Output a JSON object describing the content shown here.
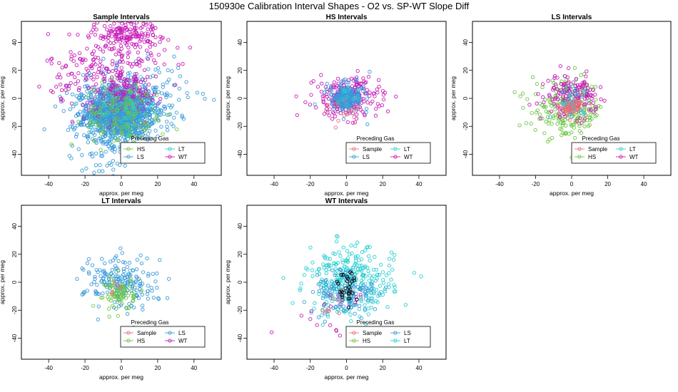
{
  "main_title": "150930e   Calibration Interval Shapes - O2 vs. SP-WT Slope Diff",
  "colors": {
    "Sample": "#e8707a",
    "HS": "#6cc644",
    "LS": "#3a9ad9",
    "LT": "#2ccfd0",
    "WT": "#c71cb8",
    "black": "#000000"
  },
  "legend_title": "Preceding Gas",
  "chart_data": [
    {
      "type": "scatter",
      "title": "Sample Intervals",
      "xlabel": "approx. per meg",
      "ylabel": "approx. per meg",
      "xlim": [
        -55,
        55
      ],
      "ylim": [
        -55,
        55
      ],
      "xticks": [
        -40,
        -20,
        0,
        20,
        40
      ],
      "yticks": [
        -40,
        -20,
        0,
        20,
        40
      ],
      "legend": [
        "HS",
        "LT",
        "LS",
        "WT"
      ],
      "legend_position": "bottom-right",
      "series": [
        {
          "name": "LS",
          "clusters": [
            [
              0,
              -10,
              9,
              9,
              1200
            ],
            [
              -5,
              -20,
              12,
              18,
              260
            ],
            [
              5,
              0,
              16,
              12,
              220
            ]
          ]
        },
        {
          "name": "WT",
          "clusters": [
            [
              3,
              47,
              9,
              6,
              170
            ],
            [
              -8,
              20,
              16,
              14,
              200
            ],
            [
              2,
              5,
              10,
              8,
              90
            ]
          ]
        },
        {
          "name": "HS",
          "clusters": [
            [
              2,
              -12,
              11,
              12,
              150
            ]
          ]
        },
        {
          "name": "LT",
          "clusters": [
            [
              0,
              -8,
              8,
              8,
              40
            ]
          ]
        }
      ]
    },
    {
      "type": "scatter",
      "title": "HS Intervals",
      "xlabel": "approx. per meg",
      "ylabel": "approx. per meg",
      "xlim": [
        -55,
        55
      ],
      "ylim": [
        -55,
        55
      ],
      "xticks": [
        -40,
        -20,
        0,
        20,
        40
      ],
      "yticks": [
        -40,
        -20,
        0,
        20,
        40
      ],
      "legend": [
        "Sample",
        "LT",
        "LS",
        "WT"
      ],
      "legend_position": "bottom-right",
      "series": [
        {
          "name": "WT",
          "clusters": [
            [
              0,
              0,
              9,
              7,
              260
            ]
          ]
        },
        {
          "name": "LS",
          "clusters": [
            [
              0,
              0,
              3,
              3,
              250
            ],
            [
              0,
              2,
              7,
              6,
              60
            ]
          ]
        },
        {
          "name": "Sample",
          "clusters": [
            [
              -3,
              -8,
              6,
              7,
              15
            ]
          ]
        },
        {
          "name": "LT",
          "clusters": [
            [
              1,
              0,
              4,
              4,
              15
            ]
          ]
        }
      ]
    },
    {
      "type": "scatter",
      "title": "LS Intervals",
      "xlabel": "approx. per meg",
      "ylabel": "approx. per meg",
      "xlim": [
        -55,
        55
      ],
      "ylim": [
        -55,
        55
      ],
      "xticks": [
        -40,
        -20,
        0,
        20,
        40
      ],
      "yticks": [
        -40,
        -20,
        0,
        20,
        40
      ],
      "legend": [
        "Sample",
        "LT",
        "HS",
        "WT"
      ],
      "legend_position": "bottom-right",
      "series": [
        {
          "name": "HS",
          "clusters": [
            [
              -2,
              -8,
              10,
              10,
              220
            ]
          ]
        },
        {
          "name": "WT",
          "clusters": [
            [
              0,
              2,
              7,
              7,
              160
            ]
          ]
        },
        {
          "name": "Sample",
          "clusters": [
            [
              0,
              -6,
              3,
              3,
              80
            ]
          ]
        },
        {
          "name": "LT",
          "clusters": [
            [
              0,
              -1,
              5,
              5,
              30
            ]
          ]
        }
      ]
    },
    {
      "type": "scatter",
      "title": "LT Intervals",
      "xlabel": "approx. per meg",
      "ylabel": "approx. per meg",
      "xlim": [
        -55,
        55
      ],
      "ylim": [
        -55,
        55
      ],
      "xticks": [
        -40,
        -20,
        0,
        20,
        40
      ],
      "yticks": [
        -40,
        -20,
        0,
        20,
        40
      ],
      "legend": [
        "Sample",
        "LS",
        "HS",
        "WT"
      ],
      "legend_position": "bottom-right",
      "series": [
        {
          "name": "LS",
          "clusters": [
            [
              0,
              0,
              10,
              10,
              200
            ]
          ]
        },
        {
          "name": "HS",
          "clusters": [
            [
              -1,
              -8,
              4,
              6,
              80
            ]
          ]
        },
        {
          "name": "Sample",
          "clusters": [
            [
              -2,
              -8,
              2,
              4,
              5
            ]
          ]
        }
      ]
    },
    {
      "type": "scatter",
      "title": "WT Intervals",
      "xlabel": "approx. per meg",
      "ylabel": "approx. per meg",
      "xlim": [
        -55,
        55
      ],
      "ylim": [
        -55,
        55
      ],
      "xticks": [
        -40,
        -20,
        0,
        20,
        40
      ],
      "yticks": [
        -40,
        -20,
        0,
        20,
        40
      ],
      "legend": [
        "Sample",
        "LS",
        "HS",
        "LT"
      ],
      "legend_position": "bottom-right",
      "series": [
        {
          "name": "LT",
          "clusters": [
            [
              2,
              0,
              12,
              12,
              320
            ]
          ]
        },
        {
          "name": "LS",
          "clusters": [
            [
              0,
              -8,
              9,
              9,
              120
            ]
          ]
        },
        {
          "name": "WT",
          "clusters": [
            [
              -10,
              -20,
              12,
              8,
              18
            ]
          ]
        },
        {
          "name": "Sample",
          "clusters": [
            [
              -8,
              -20,
              5,
              5,
              8
            ]
          ]
        },
        {
          "name": "black",
          "clusters": [
            [
              0,
              -3,
              3,
              6,
              30
            ]
          ]
        }
      ]
    }
  ]
}
